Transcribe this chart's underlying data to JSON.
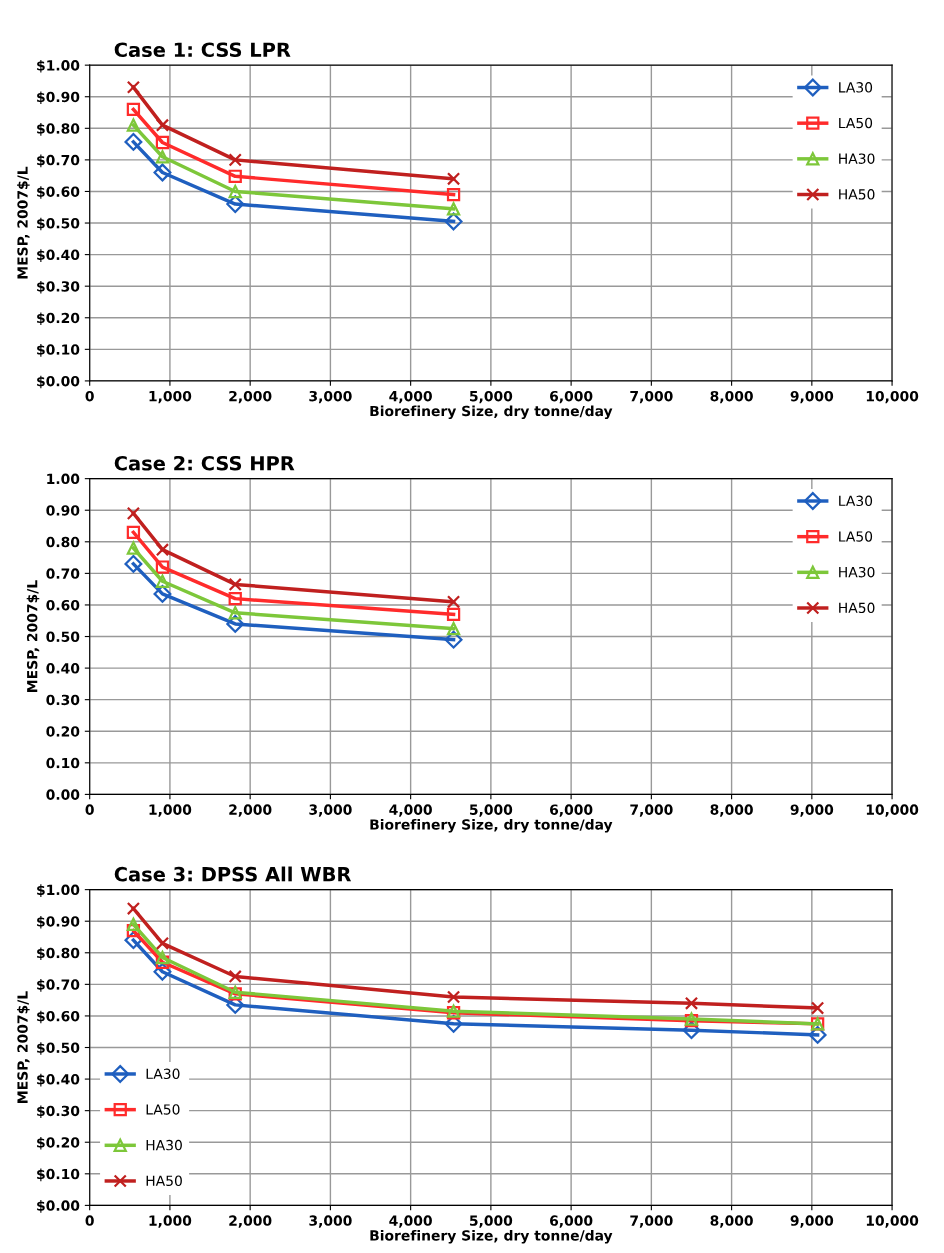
{
  "chart_data": [
    {
      "type": "line",
      "title": "Case 1: CSS LPR",
      "xlabel": "Biorefinery Size, dry tonne/day",
      "ylabel": "MESP, 2007$/L",
      "x": [
        545,
        907,
        1814,
        4535
      ],
      "series": [
        {
          "name": "LA30",
          "color": "#1f5fbf",
          "marker": "diamond",
          "values": [
            0.757,
            0.66,
            0.56,
            0.505
          ]
        },
        {
          "name": "LA50",
          "color": "#ff2b2b",
          "marker": "square",
          "values": [
            0.86,
            0.755,
            0.648,
            0.59
          ]
        },
        {
          "name": "HA30",
          "color": "#7dc73a",
          "marker": "triangle",
          "values": [
            0.81,
            0.71,
            0.6,
            0.545
          ]
        },
        {
          "name": "HA50",
          "color": "#c0201f",
          "marker": "cross",
          "values": [
            0.93,
            0.81,
            0.7,
            0.64
          ]
        }
      ],
      "xlim": [
        0,
        10000
      ],
      "xticks": [
        0,
        {
          "value": 1000,
          "label": "1,000"
        },
        {
          "value": 2000,
          "label": "2,000"
        },
        {
          "value": 3000,
          "label": "3,000"
        },
        {
          "value": 4000,
          "label": "4,000"
        },
        {
          "value": 5000,
          "label": "5,000"
        },
        {
          "value": 6000,
          "label": "6,000"
        },
        {
          "value": 7000,
          "label": "7,000"
        },
        {
          "value": 8000,
          "label": "8,000"
        },
        {
          "value": 9000,
          "label": "9,000"
        },
        {
          "value": 10000,
          "label": "10,000"
        }
      ],
      "ylim": [
        0,
        1
      ],
      "yticks": [
        {
          "value": 0,
          "label": "$0.00"
        },
        {
          "value": 0.1,
          "label": "$0.10"
        },
        {
          "value": 0.2,
          "label": "$0.20"
        },
        {
          "value": 0.3,
          "label": "$0.30"
        },
        {
          "value": 0.4,
          "label": "$0.40"
        },
        {
          "value": 0.5,
          "label": "$0.50"
        },
        {
          "value": 0.6,
          "label": "$0.60"
        },
        {
          "value": 0.7,
          "label": "$0.70"
        },
        {
          "value": 0.8,
          "label": "$0.80"
        },
        {
          "value": 0.9,
          "label": "$0.90"
        },
        {
          "value": 1,
          "label": "$1.00"
        }
      ],
      "grid": true,
      "legend": "top right",
      "line_style": "solid"
    },
    {
      "type": "line",
      "title": "Case 2: CSS HPR",
      "xlabel": "Biorefinery Size, dry tonne/day",
      "ylabel": "MESP, 2007$/L",
      "x": [
        545,
        907,
        1814,
        4535
      ],
      "series": [
        {
          "name": "LA30",
          "color": "#1f5fbf",
          "marker": "diamond",
          "values": [
            0.73,
            0.635,
            0.54,
            0.49
          ]
        },
        {
          "name": "LA50",
          "color": "#ff2b2b",
          "marker": "square",
          "values": [
            0.83,
            0.72,
            0.62,
            0.57
          ]
        },
        {
          "name": "HA30",
          "color": "#7dc73a",
          "marker": "triangle",
          "values": [
            0.78,
            0.675,
            0.575,
            0.525
          ]
        },
        {
          "name": "HA50",
          "color": "#c0201f",
          "marker": "cross",
          "values": [
            0.89,
            0.775,
            0.665,
            0.61
          ]
        }
      ],
      "xlim": [
        0,
        10000
      ],
      "xticks": [
        0,
        {
          "value": 1000,
          "label": "1,000"
        },
        {
          "value": 2000,
          "label": "2,000"
        },
        {
          "value": 3000,
          "label": "3,000"
        },
        {
          "value": 4000,
          "label": "4,000"
        },
        {
          "value": 5000,
          "label": "5,000"
        },
        {
          "value": 6000,
          "label": "6,000"
        },
        {
          "value": 7000,
          "label": "7,000"
        },
        {
          "value": 8000,
          "label": "8,000"
        },
        {
          "value": 9000,
          "label": "9,000"
        },
        {
          "value": 10000,
          "label": "10,000"
        }
      ],
      "ylim": [
        0,
        1
      ],
      "yticks": [
        {
          "value": 0,
          "label": "0.00"
        },
        {
          "value": 0.1,
          "label": "0.10"
        },
        {
          "value": 0.2,
          "label": "0.20"
        },
        {
          "value": 0.3,
          "label": "0.30"
        },
        {
          "value": 0.4,
          "label": "0.40"
        },
        {
          "value": 0.5,
          "label": "0.50"
        },
        {
          "value": 0.6,
          "label": "0.60"
        },
        {
          "value": 0.7,
          "label": "0.70"
        },
        {
          "value": 0.8,
          "label": "0.80"
        },
        {
          "value": 0.9,
          "label": "0.90"
        },
        {
          "value": 1,
          "label": "1.00"
        }
      ],
      "grid": true,
      "legend": "top right",
      "line_style": "solid"
    },
    {
      "type": "line",
      "title": "Case 3: DPSS All WBR",
      "xlabel": "Biorefinery Size, dry tonne/day",
      "ylabel": "MESP, 2007$/L",
      "x": [
        545,
        907,
        1814,
        4535,
        7500,
        9072
      ],
      "series": [
        {
          "name": "LA30",
          "color": "#1f5fbf",
          "marker": "diamond",
          "values": [
            0.84,
            0.74,
            0.635,
            0.575,
            0.555,
            0.54
          ]
        },
        {
          "name": "LA50",
          "color": "#ff2b2b",
          "marker": "square",
          "values": [
            0.87,
            0.77,
            0.67,
            0.61,
            0.585,
            0.575
          ]
        },
        {
          "name": "HA30",
          "color": "#7dc73a",
          "marker": "triangle",
          "values": [
            0.89,
            0.785,
            0.675,
            0.615,
            0.59,
            0.575
          ]
        },
        {
          "name": "HA50",
          "color": "#c0201f",
          "marker": "cross",
          "values": [
            0.94,
            0.83,
            0.725,
            0.66,
            0.64,
            0.625
          ]
        }
      ],
      "xlim": [
        0,
        10000
      ],
      "xticks": [
        0,
        {
          "value": 1000,
          "label": "1,000"
        },
        {
          "value": 2000,
          "label": "2,000"
        },
        {
          "value": 3000,
          "label": "3,000"
        },
        {
          "value": 4000,
          "label": "4,000"
        },
        {
          "value": 5000,
          "label": "5,000"
        },
        {
          "value": 6000,
          "label": "6,000"
        },
        {
          "value": 7000,
          "label": "7,000"
        },
        {
          "value": 8000,
          "label": "8,000"
        },
        {
          "value": 9000,
          "label": "9,000"
        },
        {
          "value": 10000,
          "label": "10,000"
        }
      ],
      "ylim": [
        0,
        1
      ],
      "yticks": [
        {
          "value": 0,
          "label": "$0.00"
        },
        {
          "value": 0.1,
          "label": "$0.10"
        },
        {
          "value": 0.2,
          "label": "$0.20"
        },
        {
          "value": 0.3,
          "label": "$0.30"
        },
        {
          "value": 0.4,
          "label": "$0.40"
        },
        {
          "value": 0.5,
          "label": "$0.50"
        },
        {
          "value": 0.6,
          "label": "$0.60"
        },
        {
          "value": 0.7,
          "label": "$0.70"
        },
        {
          "value": 0.8,
          "label": "$0.80"
        },
        {
          "value": 0.9,
          "label": "$0.90"
        },
        {
          "value": 1,
          "label": "$1.00"
        }
      ],
      "grid": true,
      "legend": "bottom left",
      "line_style": "solid"
    }
  ]
}
